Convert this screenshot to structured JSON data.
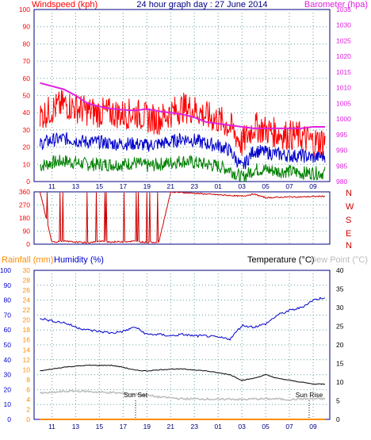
{
  "header": {
    "title": "24 hour graph day : 27 June 2014",
    "wind_label": "Windspeed (kph)",
    "baro_label": "Barometer (hpa)"
  },
  "direction_labels": [
    "N",
    "W",
    "S",
    "E",
    "N"
  ],
  "lower_header": {
    "rainfall_label": "Rainfall (mm)",
    "humidity_label": "Humidity (%)",
    "temperature_label": "Temperature (°C)",
    "dewpoint_label": "Dew Point (°C)"
  },
  "annotations": {
    "sunset": "Sun Set",
    "sunrise": "Sun Rise"
  },
  "colors": {
    "gust": "#ff0000",
    "wind": "#0000cc",
    "wind_min": "#008000",
    "baro": "#e020e0",
    "direction": "#cc0000",
    "humidity": "#0000cc",
    "temperature": "#000000",
    "dewpoint": "#bbbbbb",
    "rainfall": "#ff8c00",
    "axis": "#000080"
  },
  "chart_data": [
    {
      "type": "line",
      "title": "24 hour graph day : 27 June 2014",
      "xticks": [
        "11",
        "13",
        "15",
        "17",
        "19",
        "21",
        "23",
        "01",
        "03",
        "05",
        "07",
        "09"
      ],
      "yleft": {
        "label": "Windspeed (kph)",
        "range": [
          0,
          100
        ],
        "ticks": [
          0,
          10,
          20,
          30,
          40,
          50,
          60,
          70,
          80,
          90,
          100
        ]
      },
      "yright": {
        "label": "Barometer (hpa)",
        "range": [
          980,
          1035
        ],
        "ticks": [
          980,
          985,
          990,
          995,
          1000,
          1005,
          1010,
          1015,
          1020,
          1025,
          1030,
          1035
        ]
      },
      "x_hours": [
        0,
        1,
        2,
        3,
        4,
        5,
        6,
        7,
        8,
        9,
        10,
        11,
        12,
        13,
        14,
        15,
        16,
        17,
        18,
        19,
        20,
        21,
        22,
        23,
        24
      ],
      "series": [
        {
          "name": "Barometer (hpa)",
          "axis": "right",
          "values": [
            1011.5,
            1010.5,
            1009.5,
            1007.5,
            1005,
            1004,
            1003.3,
            1002.9,
            1002.7,
            1003.2,
            1002.5,
            1002,
            1001.5,
            1000.5,
            999,
            998.5,
            998,
            997.5,
            997,
            997,
            997,
            997,
            997,
            997.5,
            997.5
          ]
        },
        {
          "axis": "left",
          "values": [
            38,
            42,
            45,
            43,
            41,
            40,
            40,
            39,
            40,
            37,
            36,
            40,
            43,
            42,
            38,
            36,
            32,
            22,
            32,
            30,
            28,
            27,
            26,
            23,
            24
          ]
        },
        {
          "axis": "left",
          "values": [
            22,
            24,
            25,
            24,
            23,
            23,
            22,
            22,
            22,
            21,
            22,
            23,
            25,
            24,
            22,
            21,
            18,
            8,
            18,
            17,
            16,
            15,
            15,
            14,
            15
          ]
        },
        {
          "axis": "left",
          "values": [
            9,
            11,
            12,
            11,
            10,
            10,
            10,
            10,
            11,
            9,
            10,
            11,
            12,
            11,
            10,
            9,
            7,
            2,
            7,
            7,
            6,
            6,
            5,
            5,
            5
          ]
        }
      ],
      "grid": true
    },
    {
      "type": "scatter",
      "xticks": [
        "11",
        "13",
        "15",
        "17",
        "19",
        "21",
        "23",
        "01",
        "03",
        "05",
        "07",
        "09"
      ],
      "yleft": {
        "range": [
          0,
          360
        ],
        "ticks": [
          0,
          90,
          180,
          270,
          360
        ]
      },
      "yright_labels": [
        "N",
        "W",
        "S",
        "E",
        "N"
      ],
      "x_hours": [
        0,
        1,
        2,
        3,
        4,
        5,
        6,
        7,
        8,
        9,
        10,
        11,
        12,
        13,
        14,
        15,
        16,
        17,
        18,
        19,
        20,
        21,
        22,
        23,
        24
      ],
      "values": [
        360,
        15,
        20,
        15,
        10,
        20,
        15,
        18,
        20,
        12,
        15,
        360,
        355,
        350,
        345,
        340,
        335,
        330,
        345,
        320,
        322,
        325,
        325,
        328,
        330
      ],
      "grid": true
    },
    {
      "type": "line",
      "xticks": [
        "11",
        "13",
        "15",
        "17",
        "19",
        "21",
        "23",
        "01",
        "03",
        "05",
        "07",
        "09"
      ],
      "yleft_humidity": {
        "label": "Humidity (%)",
        "range": [
          0,
          100
        ],
        "ticks": [
          0,
          10,
          20,
          30,
          40,
          50,
          60,
          70,
          80,
          90,
          100
        ]
      },
      "yleft_rain": {
        "label": "Rainfall (mm)",
        "range": [
          0,
          30
        ],
        "ticks": [
          0,
          2,
          4,
          6,
          8,
          10,
          12,
          14,
          16,
          18,
          20,
          22,
          24,
          26,
          28,
          30
        ]
      },
      "yright": {
        "label": "Temperature (°C)",
        "range": [
          0,
          40
        ],
        "ticks": [
          0,
          5,
          10,
          15,
          20,
          25,
          30,
          35,
          40
        ]
      },
      "x_hours": [
        0,
        1,
        2,
        3,
        4,
        5,
        6,
        7,
        8,
        9,
        10,
        11,
        12,
        13,
        14,
        15,
        16,
        17,
        18,
        19,
        20,
        21,
        22,
        23,
        24
      ],
      "series": [
        {
          "name": "Humidity (%)",
          "axis": "humidity",
          "values": [
            68,
            66,
            65,
            62,
            60,
            59,
            58,
            59,
            62,
            57,
            57,
            56,
            57,
            56,
            56,
            55,
            54,
            63,
            62,
            64,
            70,
            73,
            75,
            80,
            82
          ]
        },
        {
          "name": "Temperature (°C)",
          "axis": "temp",
          "values": [
            13,
            13.5,
            14,
            14.3,
            14.5,
            14.5,
            14.5,
            14,
            13.2,
            13,
            13.3,
            13.5,
            13.5,
            13.3,
            13,
            12.5,
            12,
            10.5,
            11,
            12,
            11,
            10.5,
            10,
            9.5,
            9.5
          ]
        },
        {
          "name": "Dew Point (°C)",
          "axis": "temp",
          "values": [
            7,
            7.2,
            7.5,
            7.6,
            7.5,
            7.3,
            7.2,
            7,
            6.8,
            6.5,
            6,
            5.8,
            5.5,
            5.5,
            5.5,
            5.3,
            5.5,
            5.3,
            5.5,
            5.5,
            5.5,
            5.3,
            5.5,
            5.5,
            5.5
          ]
        },
        {
          "name": "Rainfall (mm)",
          "axis": "rain",
          "values": [
            0,
            0,
            0,
            0,
            0,
            0,
            0,
            0,
            0,
            0,
            0,
            0,
            0,
            0,
            0,
            0,
            0,
            0,
            0,
            0,
            0,
            0,
            0,
            0,
            0
          ]
        }
      ],
      "grid": true
    }
  ]
}
